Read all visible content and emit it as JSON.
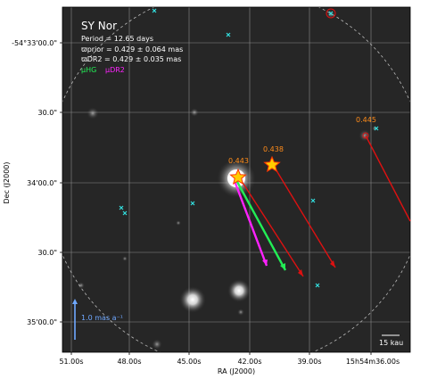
{
  "chart_data": {
    "type": "scatter",
    "title": "SY Nor",
    "legend": {
      "period": "Period = 12.65 days",
      "prior": "ϖprior = 0.429 ± 0.064 mas",
      "dr2": "ϖDR2 = 0.429 ± 0.035 mas",
      "hg": "μHG",
      "dr2_pm": "μDR2"
    },
    "xlabel": "RA (J2000)",
    "ylabel": "Dec (J2000)",
    "x_ticks": [
      "51.00s",
      "48.00s",
      "45.00s",
      "42.00s",
      "39.00s",
      "15h54m36.00s"
    ],
    "y_ticks": [
      "-54°33'00.0\"",
      "30.0\"",
      "34'00.0\"",
      "30.0\"",
      "35'00.0\""
    ],
    "scale_bar": "1.0 mas a⁻¹",
    "kau_bar": "15 kau",
    "companions": [
      {
        "label": "0.443",
        "role": "target"
      },
      {
        "label": "0.438",
        "role": "companion"
      },
      {
        "label": "0.445",
        "role": "companion"
      }
    ],
    "colors": {
      "hg": "#22ee55",
      "dr2": "#ff22ff",
      "companion_arrow": "#dd1111",
      "star_marker": "#ff3300",
      "annotation": "#ff8c1a",
      "cross": "#33dddd",
      "scale": "#6fa8ff"
    }
  }
}
